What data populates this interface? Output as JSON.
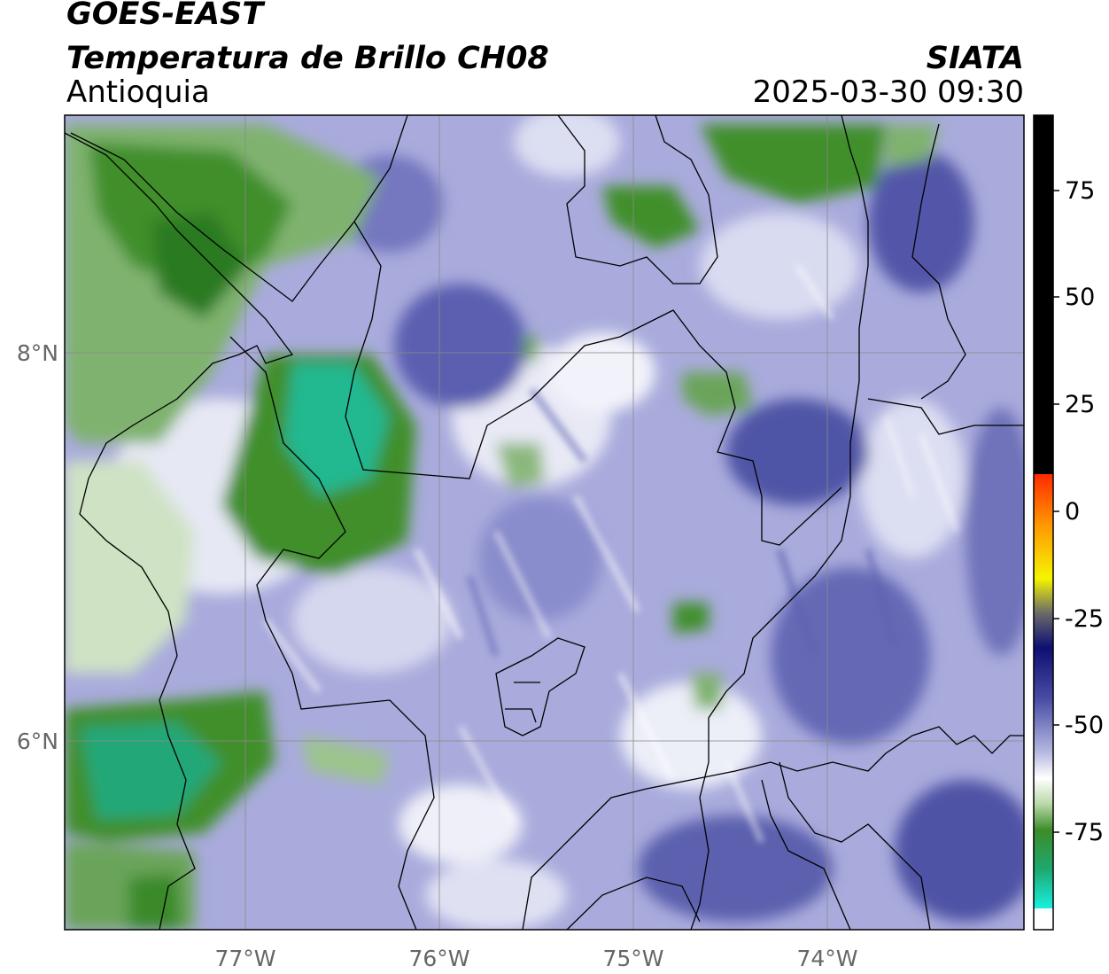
{
  "header": {
    "line1": "GOES-EAST",
    "line2": "Temperatura de Brillo CH08",
    "brand": "SIATA",
    "region": "Antioquia",
    "timestamp": "2025-03-30 09:30"
  },
  "map": {
    "lon_labels": [
      "77°W",
      "76°W",
      "75°W",
      "74°W"
    ],
    "lat_labels": [
      "8°N",
      "6°N"
    ]
  },
  "colorbar": {
    "ticks": [
      "75",
      "50",
      "25",
      "0",
      "-25",
      "-50",
      "-75"
    ],
    "colors": {
      "black": "#000000",
      "red": "#ff2a00",
      "orange": "#ff9a00",
      "yellow": "#f5f500",
      "navy": "#0d0f72",
      "blue": "#4a4fa5",
      "lavender": "#b6b8e0",
      "white": "#ffffff",
      "green": "#3c8c28",
      "teal": "#1fd6a8",
      "cyan": "#18f0e0"
    }
  },
  "palette": {
    "cold_cloud_blue": "#4b4ea0",
    "mid_blue": "#8c8fd0",
    "pale": "#dfe0f3",
    "green": "#3f8f2c",
    "deep_green": "#2a7a22",
    "teal": "#24b890",
    "boundary": "#000000",
    "grid": "#8a8a8a"
  }
}
